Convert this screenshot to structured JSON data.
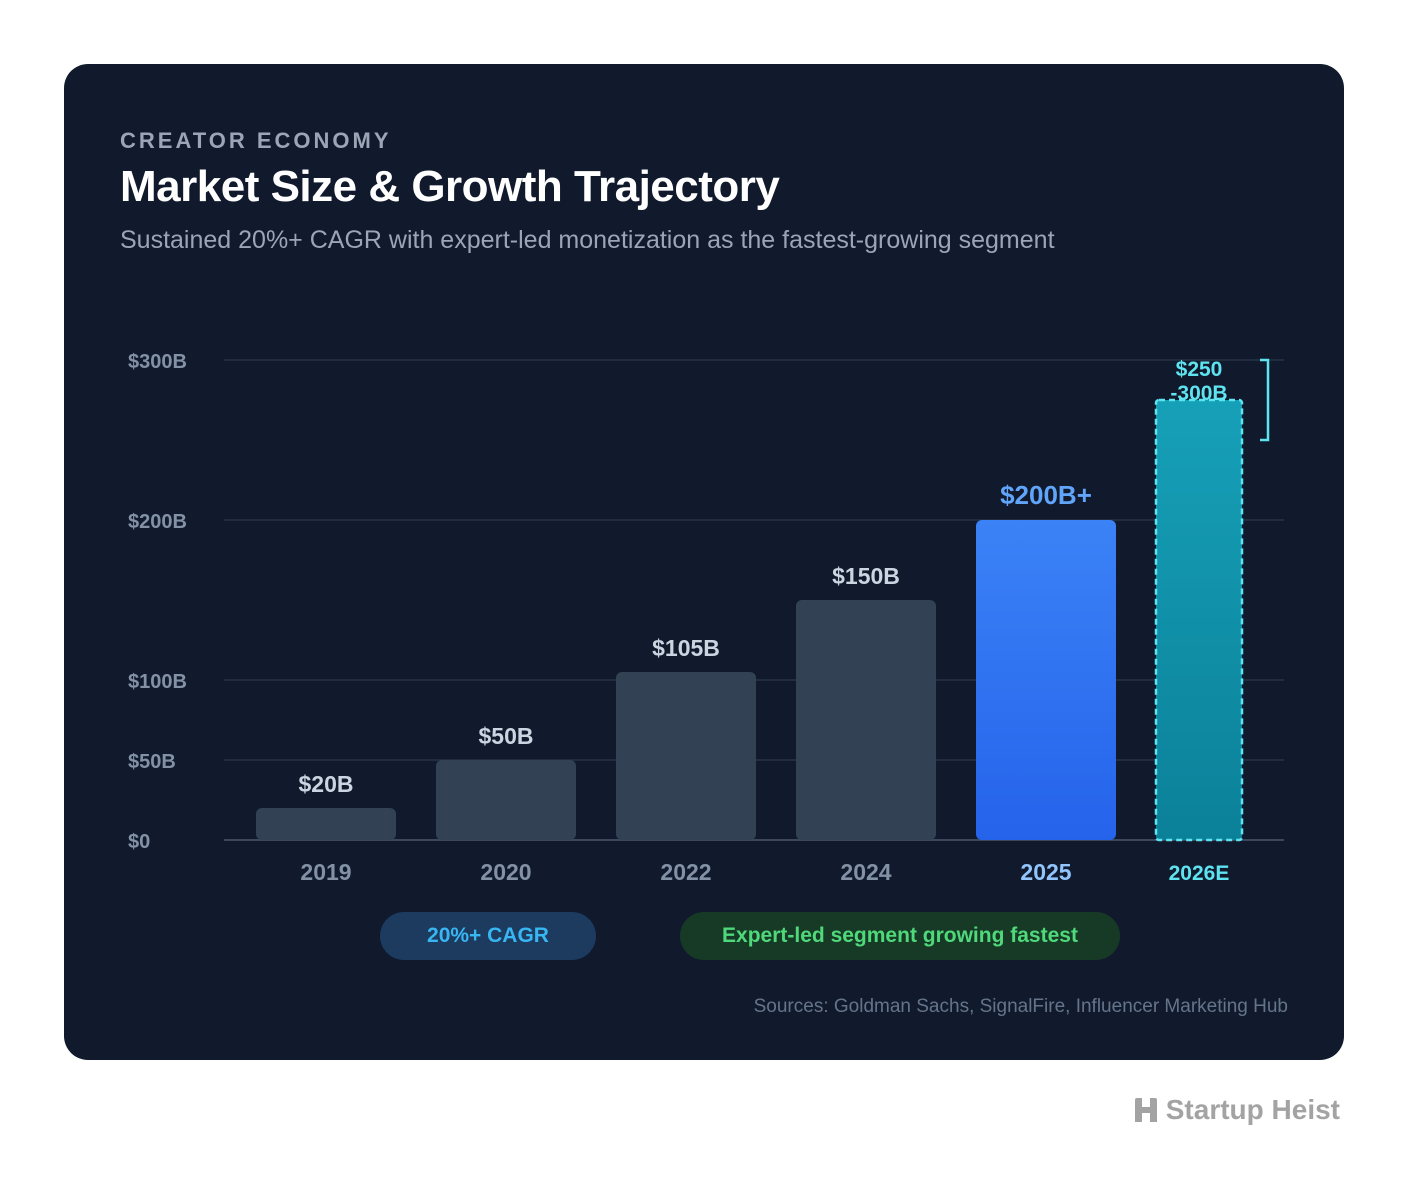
{
  "header": {
    "eyebrow": "CREATOR ECONOMY",
    "title": "Market Size & Growth Trajectory",
    "subtitle": "Sustained 20%+ CAGR with expert-led monetization as the fastest-growing segment"
  },
  "chart_data": {
    "type": "bar",
    "categories": [
      "2019",
      "2020",
      "2022",
      "2024",
      "2025",
      "2026E"
    ],
    "values": [
      20,
      50,
      105,
      150,
      200,
      275
    ],
    "value_labels": [
      "$20B",
      "$50B",
      "$105B",
      "$150B",
      "$200B+",
      [
        "$250",
        "-300B"
      ]
    ],
    "range_2026E": [
      250,
      300
    ],
    "y_ticks": [
      {
        "value": 0,
        "label": "$0"
      },
      {
        "value": 50,
        "label": "$50B"
      },
      {
        "value": 100,
        "label": "$100B"
      },
      {
        "value": 200,
        "label": "$200B"
      },
      {
        "value": 300,
        "label": "$300B"
      }
    ],
    "ylim": [
      0,
      300
    ],
    "grid": true,
    "legend": "none",
    "colors": {
      "historical": "#334155",
      "current": "#3b82f6",
      "estimate": "#0e97ad",
      "estimate_border": "#5ee3f0",
      "grid": "#253247"
    }
  },
  "badges": {
    "cagr": "20%+ CAGR",
    "expert": "Expert-led segment growing fastest"
  },
  "sources": "Sources: Goldman Sachs, SignalFire, Influencer Marketing Hub",
  "brand": {
    "name": "Startup Heist",
    "icon": "building-h-icon"
  }
}
